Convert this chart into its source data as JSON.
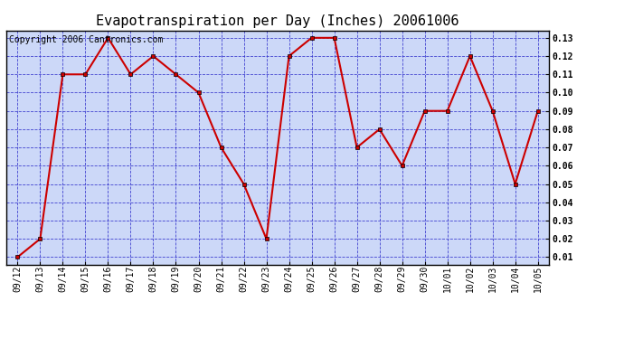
{
  "title": "Evapotranspiration per Day (Inches) 20061006",
  "copyright_text": "Copyright 2006 Cantronics.com",
  "x_labels": [
    "09/12",
    "09/13",
    "09/14",
    "09/15",
    "09/16",
    "09/17",
    "09/18",
    "09/19",
    "09/20",
    "09/21",
    "09/22",
    "09/23",
    "09/24",
    "09/25",
    "09/26",
    "09/27",
    "09/28",
    "09/29",
    "09/30",
    "10/01",
    "10/02",
    "10/03",
    "10/04",
    "10/05"
  ],
  "y_values": [
    0.01,
    0.02,
    0.11,
    0.11,
    0.13,
    0.11,
    0.12,
    0.11,
    0.1,
    0.07,
    0.05,
    0.02,
    0.12,
    0.13,
    0.13,
    0.07,
    0.08,
    0.06,
    0.09,
    0.09,
    0.12,
    0.09,
    0.05,
    0.09
  ],
  "line_color": "#cc0000",
  "marker_color": "#cc0000",
  "marker_style": "s",
  "marker_size": 3,
  "line_width": 1.5,
  "background_color": "#ffffff",
  "plot_bg_color": "#ccd8f8",
  "grid_color": "#3333cc",
  "grid_style": "--",
  "grid_alpha": 0.9,
  "ylim_min": 0.01,
  "ylim_max": 0.13,
  "ytick_values": [
    0.01,
    0.02,
    0.03,
    0.04,
    0.05,
    0.06,
    0.07,
    0.08,
    0.09,
    0.1,
    0.11,
    0.12,
    0.13
  ],
  "title_fontsize": 11,
  "copyright_fontsize": 7,
  "tick_fontsize": 7,
  "border_color": "#000000"
}
